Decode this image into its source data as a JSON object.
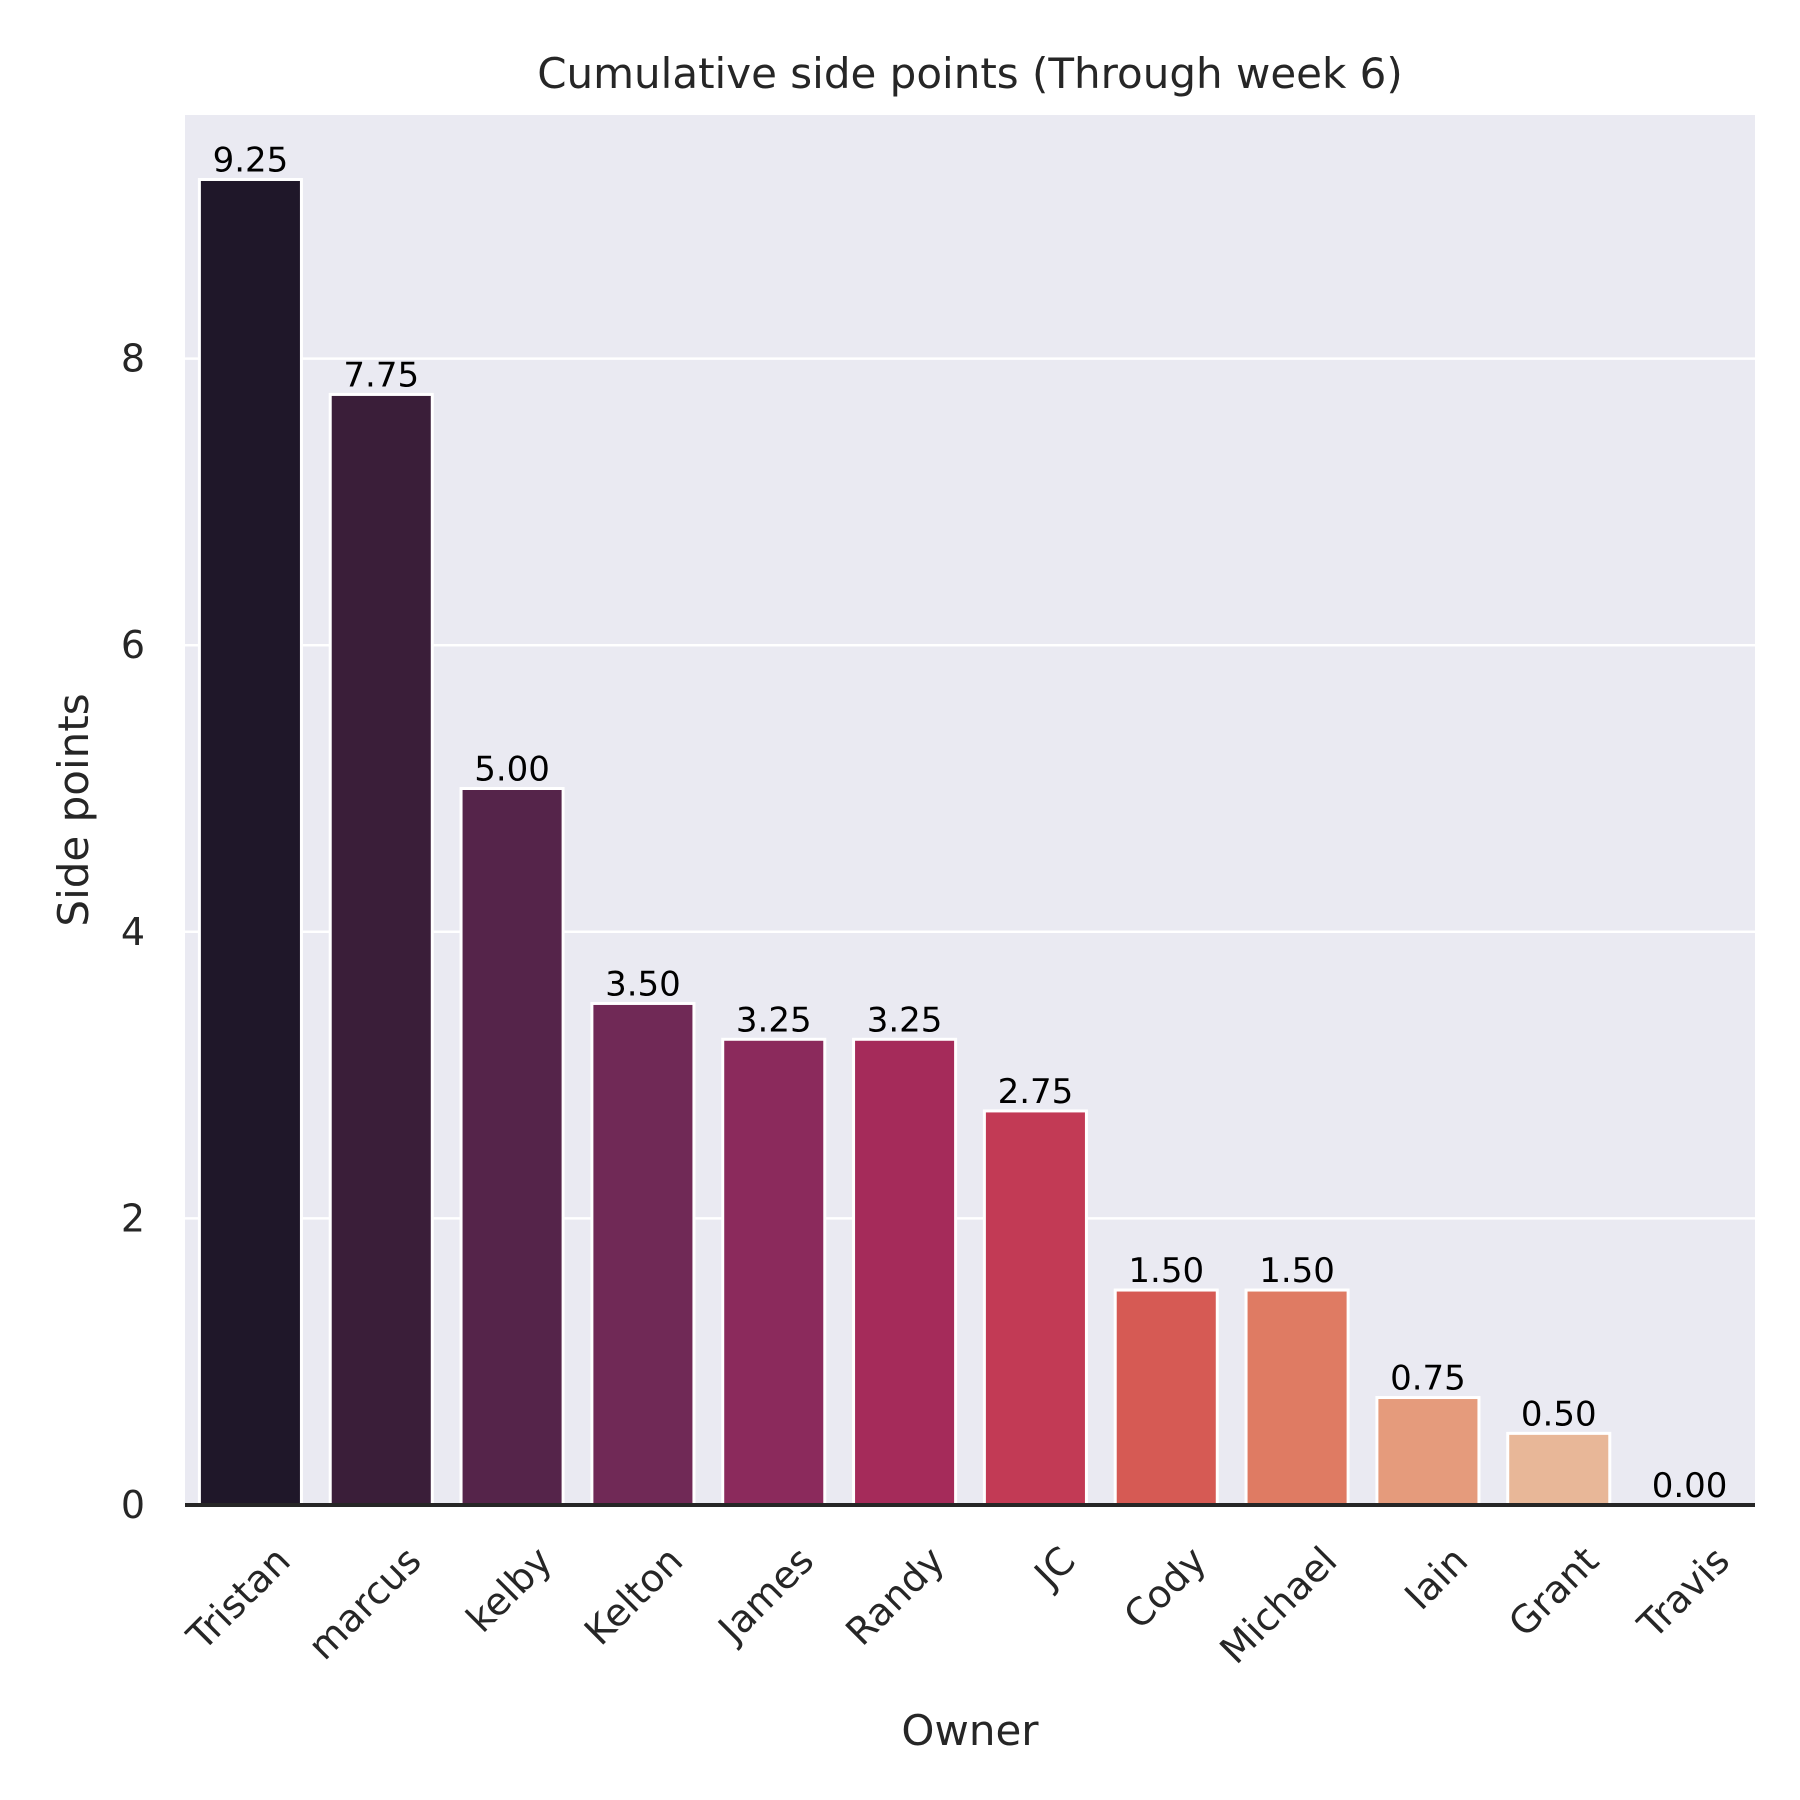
{
  "chart_data": {
    "type": "bar",
    "title": "Cumulative side points (Through week 6)",
    "xlabel": "Owner",
    "ylabel": "Side points",
    "categories": [
      "Tristan",
      "marcus",
      "kelby",
      "Kelton",
      "James",
      "Randy",
      "JC",
      "Cody",
      "Michael",
      "Iain",
      "Grant",
      "Travis"
    ],
    "values": [
      9.25,
      7.75,
      5.0,
      3.5,
      3.25,
      3.25,
      2.75,
      1.5,
      1.5,
      0.75,
      0.5,
      0.0
    ],
    "value_labels": [
      "9.25",
      "7.75",
      "5.00",
      "3.50",
      "3.25",
      "3.25",
      "2.75",
      "1.50",
      "1.50",
      "0.75",
      "0.50",
      "0.00"
    ],
    "yticks": [
      0,
      2,
      4,
      6,
      8
    ],
    "ylim": [
      0,
      9.7
    ],
    "grid": true,
    "background": "#eaeaf2",
    "colors": [
      "#1f1729",
      "#3a1e39",
      "#55244a",
      "#702956",
      "#8b2a5c",
      "#a52b5a",
      "#c23a55",
      "#d65a54",
      "#df7b63",
      "#e59b7c",
      "#e8b798",
      "#f0d5c0"
    ]
  }
}
